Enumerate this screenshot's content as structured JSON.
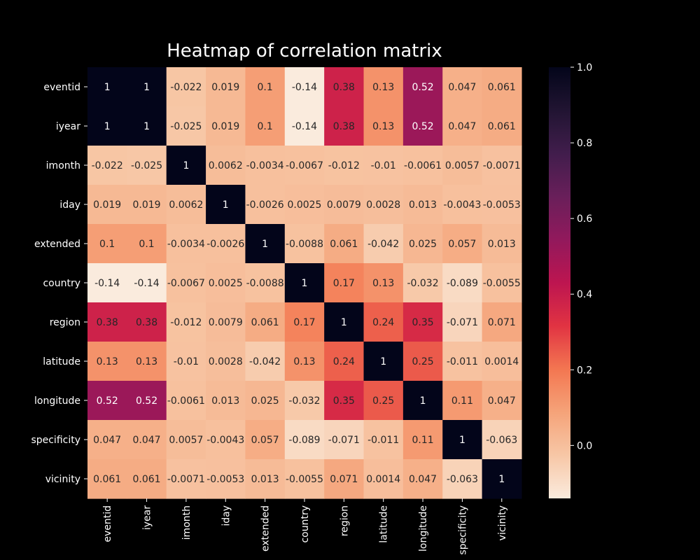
{
  "chart_data": {
    "type": "heatmap",
    "title": "Heatmap of correlation matrix",
    "xlabel": "",
    "ylabel": "",
    "row_labels": [
      "eventid",
      "iyear",
      "imonth",
      "iday",
      "extended",
      "country",
      "region",
      "latitude",
      "longitude",
      "specificity",
      "vicinity"
    ],
    "col_labels": [
      "eventid",
      "iyear",
      "imonth",
      "iday",
      "extended",
      "country",
      "region",
      "latitude",
      "longitude",
      "specificity",
      "vicinity"
    ],
    "values": [
      [
        1,
        1,
        -0.022,
        0.019,
        0.1,
        -0.14,
        0.38,
        0.13,
        0.52,
        0.047,
        0.061
      ],
      [
        1,
        1,
        -0.025,
        0.019,
        0.1,
        -0.14,
        0.38,
        0.13,
        0.52,
        0.047,
        0.061
      ],
      [
        -0.022,
        -0.025,
        1,
        0.0062,
        -0.0034,
        -0.0067,
        -0.012,
        -0.01,
        -0.0061,
        0.0057,
        -0.0071
      ],
      [
        0.019,
        0.019,
        0.0062,
        1,
        -0.0026,
        0.0025,
        0.0079,
        0.0028,
        0.013,
        -0.0043,
        -0.0053
      ],
      [
        0.1,
        0.1,
        -0.0034,
        -0.0026,
        1,
        -0.0088,
        0.061,
        -0.042,
        0.025,
        0.057,
        0.013
      ],
      [
        -0.14,
        -0.14,
        -0.0067,
        0.0025,
        -0.0088,
        1,
        0.17,
        0.13,
        -0.032,
        -0.089,
        -0.0055
      ],
      [
        0.38,
        0.38,
        -0.012,
        0.0079,
        0.061,
        0.17,
        1,
        0.24,
        0.35,
        -0.071,
        0.071
      ],
      [
        0.13,
        0.13,
        -0.01,
        0.0028,
        -0.042,
        0.13,
        0.24,
        1,
        0.25,
        -0.011,
        0.0014
      ],
      [
        0.52,
        0.52,
        -0.0061,
        0.013,
        0.025,
        -0.032,
        0.35,
        0.25,
        1,
        0.11,
        0.047
      ],
      [
        0.047,
        0.047,
        0.0057,
        -0.0043,
        0.057,
        -0.089,
        -0.071,
        -0.011,
        0.11,
        1,
        -0.063
      ],
      [
        0.061,
        0.061,
        -0.0071,
        -0.0053,
        0.013,
        -0.0055,
        0.071,
        0.0014,
        0.047,
        -0.063,
        1
      ]
    ],
    "color_range": [
      -0.14,
      1
    ],
    "colorbar_ticks": [
      "1.0",
      "0.8",
      "0.6",
      "0.4",
      "0.2",
      "0.0"
    ],
    "colormap": "rocket_r",
    "background": "#000000",
    "text_color": "#ffffff"
  }
}
